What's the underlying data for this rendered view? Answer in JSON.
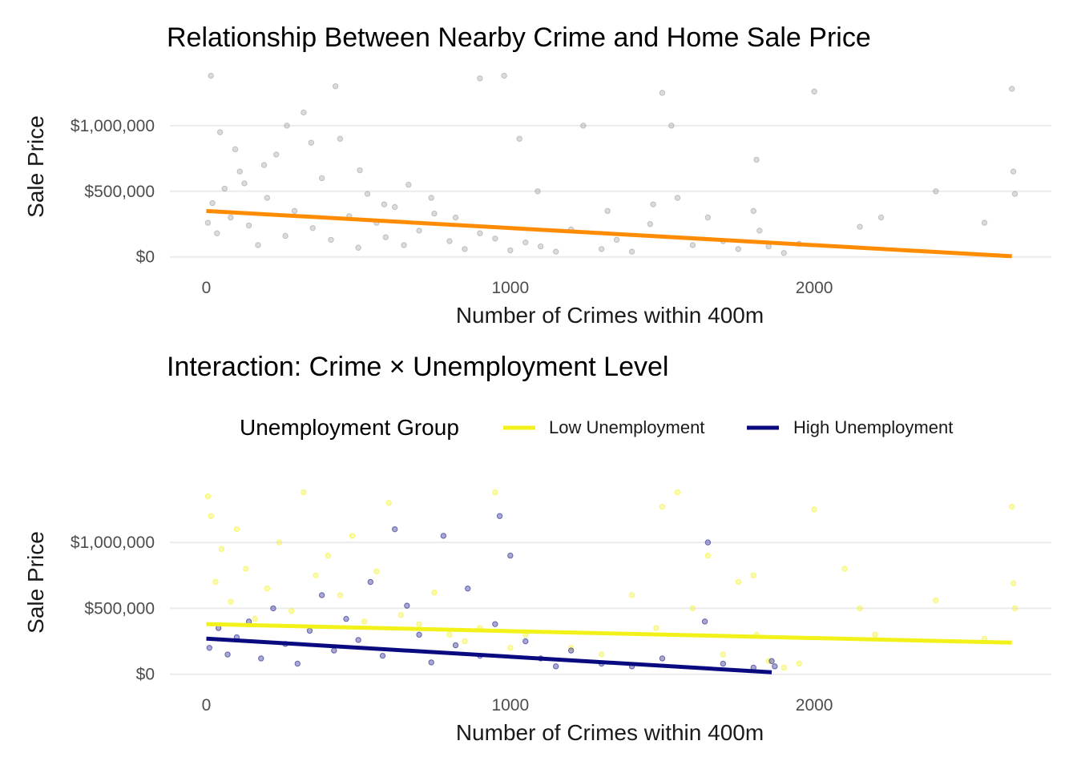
{
  "chart_data": [
    {
      "type": "scatter",
      "title": "Relationship Between Nearby Crime and Home Sale Price",
      "xlabel": "Number of Crimes within 400m",
      "ylabel": "Sale Price",
      "xlim": [
        -120,
        2780
      ],
      "ylim": [
        -20000,
        1420000
      ],
      "x_ticks": [
        0,
        1000,
        2000
      ],
      "x_tick_labels": [
        "0",
        "1000",
        "2000"
      ],
      "y_ticks": [
        0,
        500000,
        1000000
      ],
      "y_tick_labels": [
        "$0",
        "$500,000",
        "$1,000,000"
      ],
      "grid": true,
      "point_color": "#999999",
      "series": [
        {
          "color": "#999999",
          "fit_line": {
            "color": "#ff8c00",
            "x": [
              0,
              2650
            ],
            "y": [
              350000,
              5000
            ]
          },
          "points": [
            [
              5,
              260000
            ],
            [
              20,
              410000
            ],
            [
              35,
              180000
            ],
            [
              60,
              520000
            ],
            [
              80,
              300000
            ],
            [
              110,
              650000
            ],
            [
              140,
              240000
            ],
            [
              170,
              90000
            ],
            [
              200,
              450000
            ],
            [
              230,
              780000
            ],
            [
              260,
              160000
            ],
            [
              290,
              350000
            ],
            [
              320,
              1100000
            ],
            [
              350,
              220000
            ],
            [
              380,
              600000
            ],
            [
              410,
              130000
            ],
            [
              440,
              900000
            ],
            [
              470,
              310000
            ],
            [
              500,
              70000
            ],
            [
              530,
              480000
            ],
            [
              560,
              260000
            ],
            [
              590,
              150000
            ],
            [
              620,
              380000
            ],
            [
              650,
              90000
            ],
            [
              700,
              200000
            ],
            [
              750,
              330000
            ],
            [
              800,
              120000
            ],
            [
              850,
              60000
            ],
            [
              900,
              180000
            ],
            [
              950,
              140000
            ],
            [
              1000,
              50000
            ],
            [
              1050,
              110000
            ],
            [
              1100,
              80000
            ],
            [
              1150,
              40000
            ],
            [
              1200,
              210000
            ],
            [
              1300,
              60000
            ],
            [
              1350,
              130000
            ],
            [
              1400,
              40000
            ],
            [
              1460,
              250000
            ],
            [
              1470,
              400000
            ],
            [
              1500,
              1250000
            ],
            [
              1530,
              1000000
            ],
            [
              1550,
              450000
            ],
            [
              1600,
              90000
            ],
            [
              1650,
              300000
            ],
            [
              1700,
              120000
            ],
            [
              1750,
              60000
            ],
            [
              1800,
              350000
            ],
            [
              1810,
              740000
            ],
            [
              1820,
              200000
            ],
            [
              1850,
              80000
            ],
            [
              1900,
              30000
            ],
            [
              1950,
              100000
            ],
            [
              2000,
              1260000
            ],
            [
              2150,
              230000
            ],
            [
              2220,
              300000
            ],
            [
              2400,
              500000
            ],
            [
              2560,
              260000
            ],
            [
              2650,
              1280000
            ],
            [
              2655,
              650000
            ],
            [
              2660,
              480000
            ],
            [
              15,
              1380000
            ],
            [
              45,
              950000
            ],
            [
              95,
              820000
            ],
            [
              125,
              560000
            ],
            [
              190,
              700000
            ],
            [
              265,
              1000000
            ],
            [
              345,
              870000
            ],
            [
              425,
              1300000
            ],
            [
              505,
              660000
            ],
            [
              585,
              400000
            ],
            [
              665,
              550000
            ],
            [
              740,
              450000
            ],
            [
              820,
              300000
            ],
            [
              900,
              1360000
            ],
            [
              980,
              1380000
            ],
            [
              1030,
              900000
            ],
            [
              1090,
              500000
            ],
            [
              1240,
              1000000
            ],
            [
              1320,
              350000
            ]
          ]
        }
      ]
    },
    {
      "type": "scatter",
      "title": "Interaction: Crime × Unemployment Level",
      "xlabel": "Number of Crimes within 400m",
      "ylabel": "Sale Price",
      "xlim": [
        -120,
        2780
      ],
      "ylim": [
        -20000,
        1420000
      ],
      "x_ticks": [
        0,
        1000,
        2000
      ],
      "x_tick_labels": [
        "0",
        "1000",
        "2000"
      ],
      "y_ticks": [
        0,
        500000,
        1000000
      ],
      "y_tick_labels": [
        "$0",
        "$500,000",
        "$1,000,000"
      ],
      "grid": true,
      "legend": {
        "title": "Unemployment Group",
        "position": "top"
      },
      "series": [
        {
          "name": "Low Unemployment",
          "color": "#f2f21a",
          "fit_line": {
            "x": [
              0,
              2650
            ],
            "y": [
              380000,
              240000
            ]
          },
          "points": [
            [
              5,
              1350000
            ],
            [
              15,
              1200000
            ],
            [
              30,
              700000
            ],
            [
              50,
              950000
            ],
            [
              80,
              550000
            ],
            [
              100,
              1100000
            ],
            [
              130,
              800000
            ],
            [
              160,
              420000
            ],
            [
              200,
              650000
            ],
            [
              240,
              1000000
            ],
            [
              280,
              480000
            ],
            [
              320,
              1380000
            ],
            [
              360,
              750000
            ],
            [
              400,
              900000
            ],
            [
              440,
              600000
            ],
            [
              480,
              1050000
            ],
            [
              520,
              400000
            ],
            [
              560,
              780000
            ],
            [
              600,
              1300000
            ],
            [
              640,
              450000
            ],
            [
              700,
              380000
            ],
            [
              750,
              620000
            ],
            [
              800,
              300000
            ],
            [
              850,
              250000
            ],
            [
              900,
              350000
            ],
            [
              950,
              1380000
            ],
            [
              1000,
              200000
            ],
            [
              1050,
              300000
            ],
            [
              1200,
              200000
            ],
            [
              1300,
              150000
            ],
            [
              1400,
              600000
            ],
            [
              1480,
              350000
            ],
            [
              1500,
              1270000
            ],
            [
              1550,
              1380000
            ],
            [
              1600,
              500000
            ],
            [
              1650,
              900000
            ],
            [
              1700,
              150000
            ],
            [
              1750,
              700000
            ],
            [
              1800,
              750000
            ],
            [
              1810,
              300000
            ],
            [
              1850,
              100000
            ],
            [
              1900,
              50000
            ],
            [
              1950,
              80000
            ],
            [
              2000,
              1250000
            ],
            [
              2100,
              800000
            ],
            [
              2150,
              500000
            ],
            [
              2200,
              300000
            ],
            [
              2400,
              560000
            ],
            [
              2560,
              270000
            ],
            [
              2650,
              1270000
            ],
            [
              2655,
              690000
            ],
            [
              2660,
              500000
            ]
          ]
        },
        {
          "name": "High Unemployment",
          "color": "#0a0a80",
          "fit_line": {
            "x": [
              0,
              1860
            ],
            "y": [
              270000,
              15000
            ]
          },
          "points": [
            [
              10,
              200000
            ],
            [
              40,
              350000
            ],
            [
              70,
              150000
            ],
            [
              100,
              280000
            ],
            [
              140,
              400000
            ],
            [
              180,
              120000
            ],
            [
              220,
              500000
            ],
            [
              260,
              230000
            ],
            [
              300,
              80000
            ],
            [
              340,
              330000
            ],
            [
              380,
              600000
            ],
            [
              420,
              180000
            ],
            [
              460,
              420000
            ],
            [
              500,
              260000
            ],
            [
              540,
              700000
            ],
            [
              580,
              140000
            ],
            [
              620,
              1100000
            ],
            [
              660,
              520000
            ],
            [
              700,
              300000
            ],
            [
              740,
              90000
            ],
            [
              780,
              1050000
            ],
            [
              820,
              220000
            ],
            [
              860,
              650000
            ],
            [
              900,
              140000
            ],
            [
              950,
              380000
            ],
            [
              1000,
              900000
            ],
            [
              1050,
              250000
            ],
            [
              1100,
              120000
            ],
            [
              1150,
              60000
            ],
            [
              1200,
              180000
            ],
            [
              1300,
              80000
            ],
            [
              1400,
              60000
            ],
            [
              1500,
              120000
            ],
            [
              1640,
              400000
            ],
            [
              1650,
              1000000
            ],
            [
              1700,
              80000
            ],
            [
              1800,
              50000
            ],
            [
              1860,
              100000
            ],
            [
              1870,
              60000
            ],
            [
              965,
              1200000
            ]
          ]
        }
      ]
    }
  ]
}
